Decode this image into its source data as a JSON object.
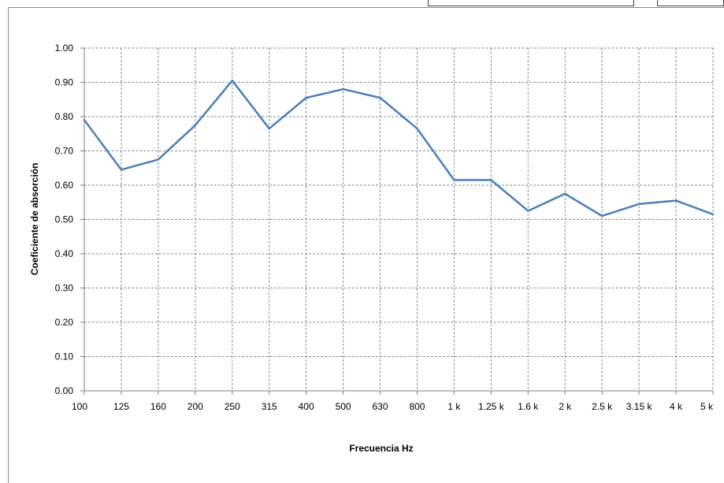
{
  "chart_data": {
    "type": "line",
    "title": "",
    "xlabel": "Frecuencia Hz",
    "ylabel": "Coeficiente de absorción",
    "categories": [
      "100",
      "125",
      "160",
      "200",
      "250",
      "315",
      "400",
      "500",
      "630",
      "800",
      "1 k",
      "1.25 k",
      "1.6 k",
      "2 k",
      "2.5 k",
      "3.15 k",
      "4 k",
      "5 k"
    ],
    "y_ticks": [
      "0.00",
      "0.10",
      "0.20",
      "0.30",
      "0.40",
      "0.50",
      "0.60",
      "0.70",
      "0.80",
      "0.90",
      "1.00"
    ],
    "ylim": [
      0,
      1
    ],
    "grid": true,
    "legend": "none",
    "series": [
      {
        "color": "#4a7ebb",
        "values": [
          0.79,
          0.645,
          0.675,
          0.775,
          0.905,
          0.765,
          0.855,
          0.88,
          0.855,
          0.765,
          0.615,
          0.615,
          0.525,
          0.575,
          0.51,
          0.545,
          0.555,
          0.515
        ]
      }
    ]
  }
}
